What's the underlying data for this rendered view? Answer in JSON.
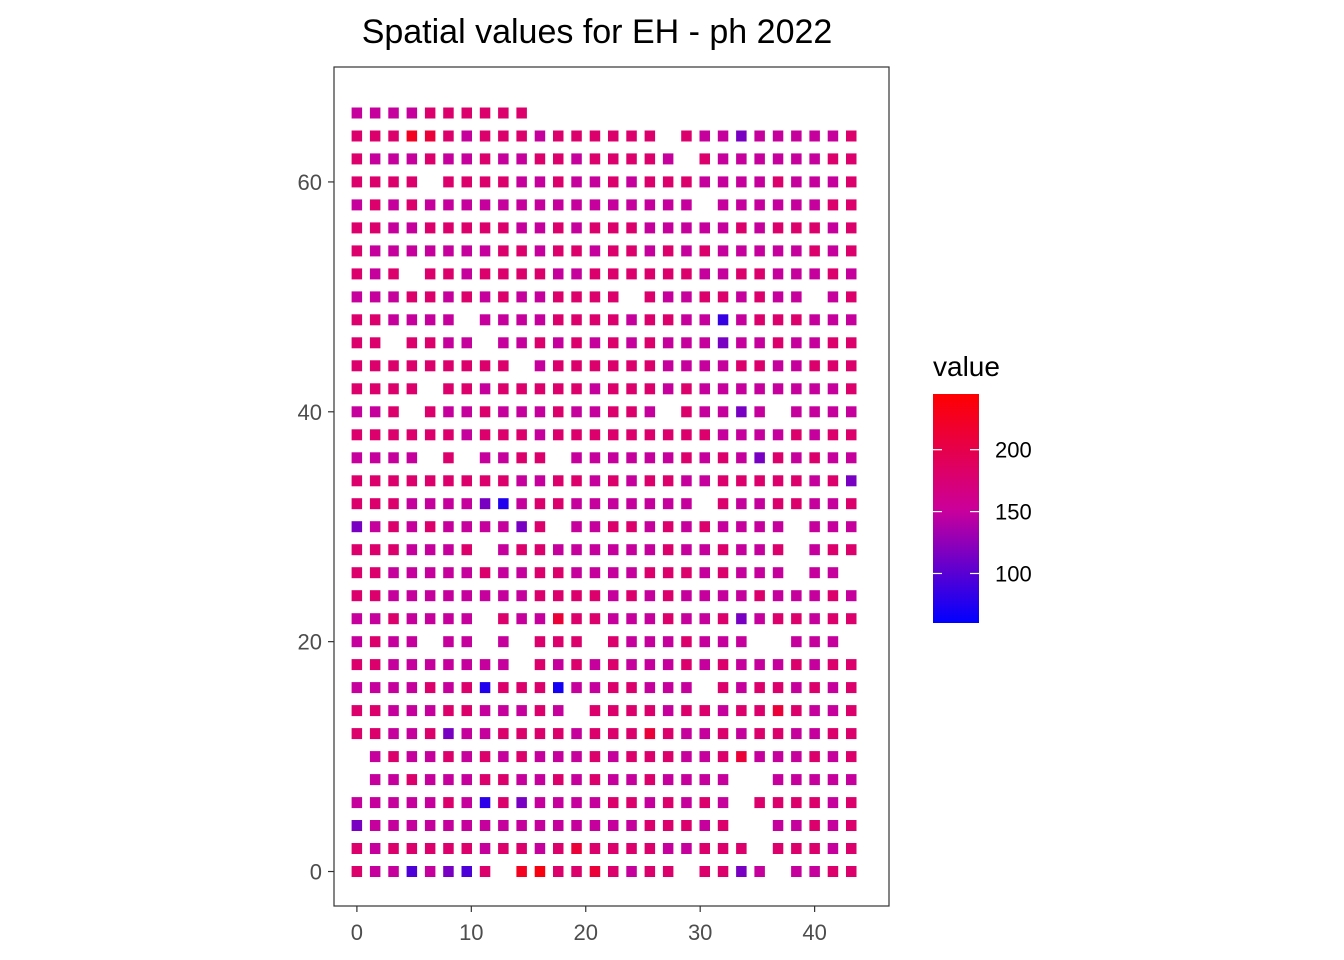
{
  "chart_data": {
    "type": "heatmap",
    "title": "Spatial values for EH - ph 2022",
    "xlabel": "",
    "ylabel": "",
    "xlim": [
      -2,
      46.5
    ],
    "ylim": [
      -3,
      70
    ],
    "x_ticks": [
      0,
      10,
      20,
      30,
      40
    ],
    "y_ticks": [
      0,
      20,
      40,
      60
    ],
    "x_tick_labels": [
      "0",
      "10",
      "20",
      "30",
      "40"
    ],
    "y_tick_labels": [
      "0",
      "20",
      "40",
      "60"
    ],
    "grid": false,
    "columns_x": [
      0,
      1.6,
      3.2,
      4.8,
      6.4,
      8,
      9.6,
      11.2,
      12.8,
      14.4,
      16,
      17.6,
      19.2,
      20.8,
      22.4,
      24,
      25.6,
      27.2,
      28.8,
      30.4,
      32,
      33.6,
      35.2,
      36.8,
      38.4,
      40,
      41.6,
      43.2
    ],
    "rows_y": [
      0,
      2,
      4,
      6,
      8,
      10,
      12,
      14,
      16,
      18,
      20,
      22,
      24,
      26,
      28,
      30,
      32,
      34,
      36,
      38,
      40,
      42,
      44,
      46,
      48,
      50,
      52,
      54,
      56,
      58,
      60,
      62,
      64,
      66
    ],
    "rows": [
      "CBB9BA9C.Y.CCDCBCC.CCAB.BBCC",
      "CBCCCCCBCCBCDCCCCBBCCC.CCCBC",
      "ABBBBBBBBBBBBBBBCCCBC..BBCBC",
      "BBBBBCBBCABBBBCCBCBCB.CCCCBC",
      ".BBCBBBCCBBCBCBBCBBBB..BBBBB",
      ".BCBBCBCBCBBBCBCCCBBCDBBBCBC",
      "CCBBCABBCCCCBCCCDCBBCBCCBBCC",
      "CCBBBCCBBBCB.CCCCBCCBCCDCBBC",
      "BBBBCBC.CCC8BBCCBBB.CBCCBCBC",
      "CCBBBBBBB.CBCBCBBBCBCBBBCBCC",
      "BCBB.BB.B.CCC.CBBBCBBB..BBB.",
      "BBCBBBB.CBBDCCBBBCBBCABCCBCC",
      "CCBBBBBBBBCCCCBCBCBBBBCBBBCB",
      "CCBBBBBCBBCCBBBBCCCBCBBB.BB.",
      "CCCBBBC.BCCBBBBBBCBBCBBC.BCC",
      "ABCBCBBBBAC.BBCCBCBCBBBB.BBB",
      "CCCBBBBACBCCBBBBBBB.CBBCCBBC",
      "CCCCCCCCCBBCCBCBCCBBCCCCCBCA",
      "BBBB.C.BBCC.BBBBBBCBCBACBCBB",
      "CCCCCCBCCCBCCCCCCCCCBBBBCBCC",
      "BBC.CBBCBBBCBBCCB.CBBAB.BBBB",
      "CCCC.CCBCCCCCBCCCBCBBBBBBBBC",
      "CCCCCCCCC.BCCCCCCBBBBCCBBCCC",
      "CC.CCBB.BBCBCBCBCBBBABBCBBCC",
      "CCBBBB.BBBBCCCCBCCBBBBCCCBBB",
      "BBBCCBCBCBBCCCC.CBBCCBCBB.BC",
      "CBC.CCBCCCCBBCCCCCCBBCCBBBCB",
      "CBBBBBBBCCBCCBCCBCBCBBBBBCBC",
      "CCBBCCCCCBBCBCCCBBBBBCBCCCBC",
      "BCBCBBBBBBBBBBBBBBB.BBBBBBCC",
      "CCCC.CCCCBBCBBCBCCCBBBBCBBBC",
      "CBBBCBBCBBCCBCCCCB.CBBBBBBCC",
      "CCCCDCBCCCBCCCCCC.CBBABBBBBC",
      "BBBBCCCCCC.................."
    ],
    "value_code_map": {
      "8": 70,
      "9": 95,
      "Y": 225,
      "A": 115,
      "B": 150,
      "C": 180,
      "D": 210,
      ".": null
    },
    "special_cells": [
      {
        "x": 16,
        "y": 0,
        "value": 235
      },
      {
        "x": 11.2,
        "y": 16,
        "value": 75
      },
      {
        "x": 11.2,
        "y": 6,
        "value": 80
      },
      {
        "x": 12.8,
        "y": 32,
        "value": 75
      },
      {
        "x": 32,
        "y": 48,
        "value": 85
      },
      {
        "x": 4.8,
        "y": 64,
        "value": 225
      }
    ],
    "legend": {
      "title": "value",
      "position": "right",
      "min": 60,
      "max": 245,
      "ticks": [
        100,
        150,
        200
      ],
      "tick_labels": [
        "100",
        "150",
        "200"
      ],
      "low_color": "#0000ff",
      "mid_color": "#cc0099",
      "high_color": "#ff0000"
    }
  }
}
